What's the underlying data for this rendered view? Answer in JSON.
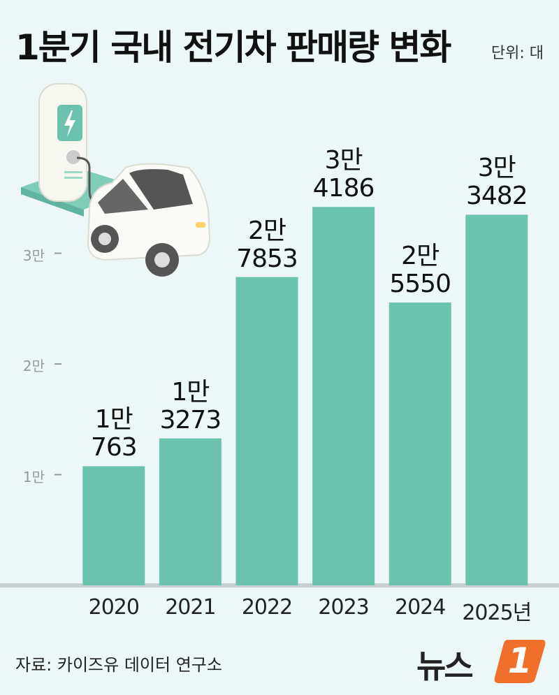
{
  "header": {
    "title": "1분기 국내 전기차 판매량 변화",
    "unit": "단위: 대"
  },
  "chart_data": {
    "type": "bar",
    "categories": [
      "2020",
      "2021",
      "2022",
      "2023",
      "2024",
      "2025년"
    ],
    "values": [
      10763,
      13273,
      27853,
      34186,
      25550,
      33482
    ],
    "value_labels": [
      "1만\n763",
      "1만\n3273",
      "2만\n7853",
      "3만\n4186",
      "2만\n5550",
      "3만\n3482"
    ],
    "color": "#6bc2ad",
    "ylim": [
      0,
      46000
    ],
    "yticks": [
      {
        "value": 10000,
        "label": "1만"
      },
      {
        "value": 20000,
        "label": "2만"
      },
      {
        "value": 30000,
        "label": "3만"
      }
    ],
    "grid": false
  },
  "footer": {
    "source": "자료: 카이즈유 데이터 연구소",
    "logo": {
      "text": "뉴스",
      "mark": "1"
    }
  }
}
